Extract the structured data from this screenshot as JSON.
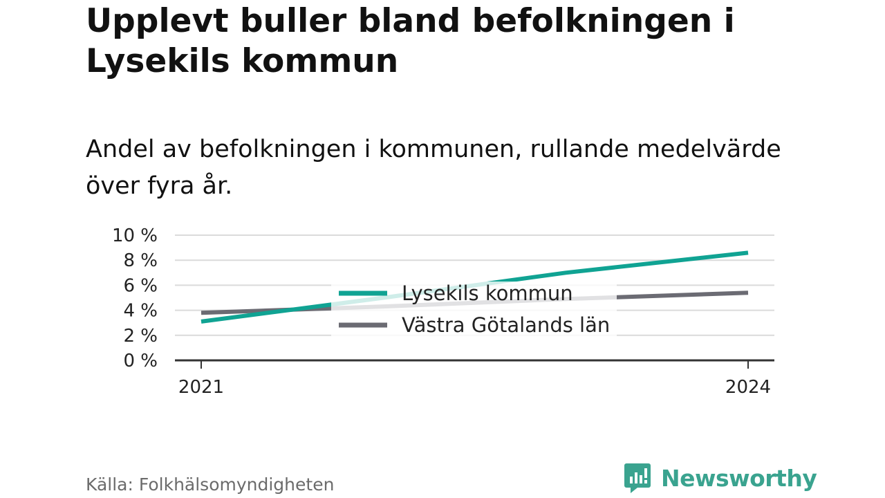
{
  "title": "Upplevt buller bland befolkningen i Lysekils kommun",
  "subtitle": "Andel av befolkningen i kommunen, rullande medelvärde över fyra år.",
  "source": "Källa: Folkhälsomyndigheten",
  "brand": {
    "name": "Newsworthy",
    "icon": "newsworthy-logo-icon",
    "color": "#3aa38f"
  },
  "chart_data": {
    "type": "line",
    "x": [
      2021,
      2022,
      2023,
      2024
    ],
    "x_tick_labels": [
      "2021",
      "2024"
    ],
    "y_tick_labels": [
      "0 %",
      "2 %",
      "4 %",
      "6 %",
      "8 %",
      "10 %"
    ],
    "ylim": [
      0,
      10
    ],
    "grid": true,
    "legend_placement": "center",
    "series": [
      {
        "name": "Lysekils kommun",
        "color": "#10a393",
        "values": [
          3.1,
          5.0,
          7.0,
          8.6
        ]
      },
      {
        "name": "Västra Götalands län",
        "color": "#6b6b73",
        "values": [
          3.8,
          4.3,
          4.9,
          5.4
        ]
      }
    ]
  }
}
